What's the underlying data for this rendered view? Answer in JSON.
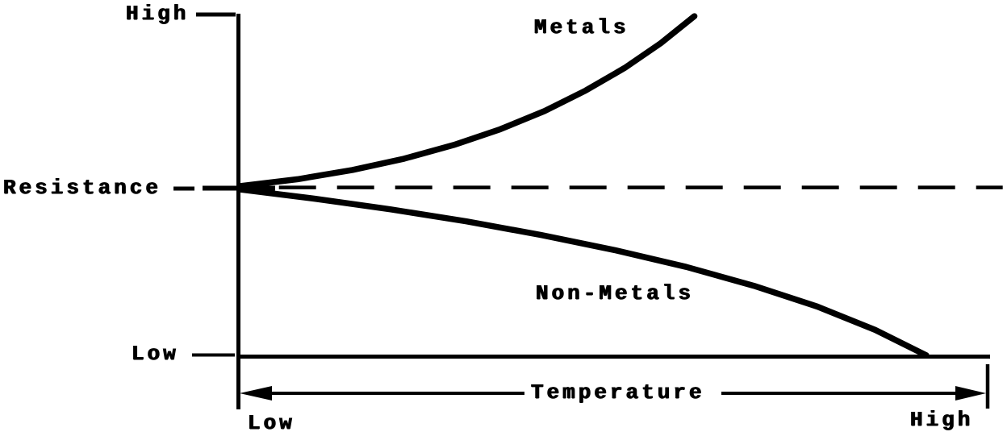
{
  "chart_data": {
    "type": "line",
    "title": "",
    "xlabel": "Temperature",
    "ylabel": "Resistance",
    "axis_labels": {
      "y_top": "High",
      "y_bottom": "Low",
      "x_left": "Low",
      "x_right": "High"
    },
    "x_range_normalized": [
      0,
      1
    ],
    "y_range_normalized": [
      0,
      1
    ],
    "grid": false,
    "legend_position": "inline-curve-labels",
    "ink_color": "#000000",
    "background_color": "#ffffff",
    "reference_line": {
      "orientation": "horizontal",
      "style": "dashed",
      "y": 0.495,
      "x_start": 0.054,
      "x_end": 1.019
    },
    "series": [
      {
        "name": "Metals",
        "trend": "increasing",
        "shape": "concave-up",
        "points": [
          [
            0.003,
            0.499
          ],
          [
            0.079,
            0.519
          ],
          [
            0.152,
            0.546
          ],
          [
            0.221,
            0.579
          ],
          [
            0.287,
            0.619
          ],
          [
            0.349,
            0.665
          ],
          [
            0.408,
            0.718
          ],
          [
            0.463,
            0.778
          ],
          [
            0.515,
            0.844
          ],
          [
            0.563,
            0.916
          ],
          [
            0.608,
            0.995
          ]
        ]
      },
      {
        "name": "Non-Metals",
        "trend": "decreasing",
        "shape": "concave-down",
        "points": [
          [
            0.003,
            0.489
          ],
          [
            0.102,
            0.462
          ],
          [
            0.203,
            0.431
          ],
          [
            0.304,
            0.396
          ],
          [
            0.404,
            0.356
          ],
          [
            0.502,
            0.312
          ],
          [
            0.597,
            0.263
          ],
          [
            0.687,
            0.208
          ],
          [
            0.772,
            0.147
          ],
          [
            0.849,
            0.079
          ],
          [
            0.917,
            0.005
          ]
        ]
      }
    ]
  }
}
